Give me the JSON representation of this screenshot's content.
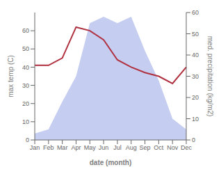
{
  "chart_data": {
    "type": "line",
    "categories": [
      "Jan",
      "Feb",
      "Mar",
      "Apr",
      "May",
      "Jun",
      "Jul",
      "Aug",
      "Sep",
      "Oct",
      "Nov",
      "Dec"
    ],
    "series": [
      {
        "type": "line",
        "color": "#b03040",
        "values": [
          41,
          41,
          45,
          62,
          60,
          55,
          44,
          40,
          37,
          35,
          31,
          40
        ]
      },
      {
        "type": "area",
        "color": "#c5cdf0",
        "axis": "y2",
        "values": [
          3,
          5,
          18,
          30,
          55,
          58,
          55,
          58,
          42,
          28,
          10,
          5
        ]
      }
    ],
    "xlabel": "date (month)",
    "ylabel": "max temp (C)",
    "y2label": "med. precipitation (kg/m2)",
    "ylim": [
      0,
      70
    ],
    "yticks": [
      0,
      10,
      20,
      30,
      40,
      50,
      60
    ],
    "y2lim": [
      0,
      60
    ],
    "y2ticks": [
      0,
      10,
      20,
      30,
      40,
      50,
      60
    ]
  }
}
